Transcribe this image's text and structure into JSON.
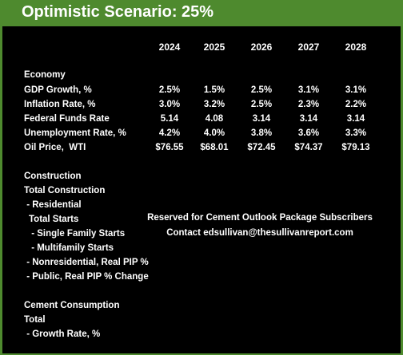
{
  "title": "Optimistic Scenario: 25%",
  "years": [
    "2024",
    "2025",
    "2026",
    "2027",
    "2028"
  ],
  "economy": {
    "heading": "Economy",
    "rows": [
      {
        "label": "GDP Growth, %",
        "values": [
          "2.5%",
          "1.5%",
          "2.5%",
          "3.1%",
          "3.1%"
        ]
      },
      {
        "label": "Inflation Rate, %",
        "values": [
          "3.0%",
          "3.2%",
          "2.5%",
          "2.3%",
          "2.2%"
        ]
      },
      {
        "label": "Federal Funds Rate",
        "values": [
          "5.14",
          "4.08",
          "3.14",
          "3.14",
          "3.14"
        ]
      },
      {
        "label": "Unemployment Rate, %",
        "values": [
          "4.2%",
          "4.0%",
          "3.8%",
          "3.6%",
          "3.3%"
        ]
      },
      {
        "label": "Oil Price,  WTI",
        "values": [
          "$76.55",
          "$68.01",
          "$72.45",
          "$74.37",
          "$79.13"
        ]
      }
    ]
  },
  "construction": {
    "heading": "Construction",
    "total_label": "Total Construction",
    "residential_label": " - Residential",
    "total_starts_label": "Total Starts",
    "single_family_label": " - Single Family Starts",
    "multifamily_label": " - Multifamily Starts",
    "nonresidential_label": " - Nonresidential, Real PIP %",
    "public_label": " - Public, Real PIP % Change"
  },
  "notice": {
    "line1": "Reserved for Cement Outlook Package Subscribers",
    "line2": "Contact edsullivan@thesullivanreport.com"
  },
  "cement": {
    "heading": "Cement Consumption",
    "total_label": "Total",
    "growth_label": " - Growth Rate, %"
  },
  "colors": {
    "accent_green": "#4e8a2e",
    "background": "#000000",
    "text": "#ffffff"
  }
}
